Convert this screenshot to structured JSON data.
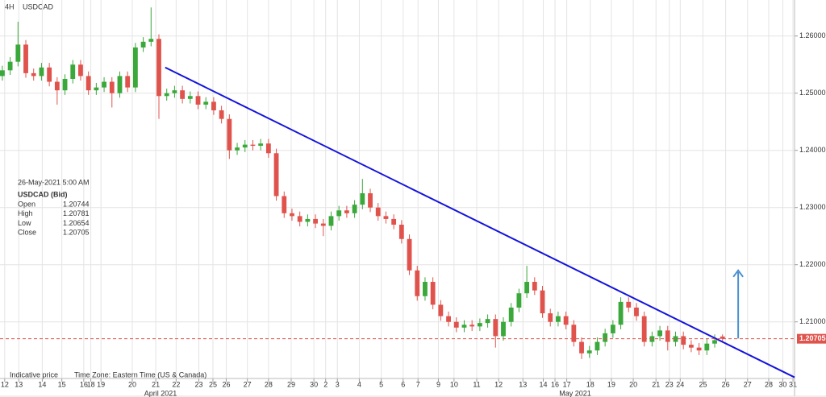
{
  "chart_data": {
    "type": "candlestick",
    "timeframe": "4H",
    "symbol": "USDCAD",
    "info": {
      "date": "26-May-2021 5:00 AM",
      "instrument": "USDCAD (Bid)",
      "labels": [
        "Open",
        "High",
        "Low",
        "Close"
      ]
    },
    "footer": [
      "Indicative price",
      "Time Zone: Eastern Time (US & Canada)"
    ],
    "month_labels": [
      "April 2021",
      "May 2021"
    ],
    "up_color": "#3aa83a",
    "down_color": "#e0534d",
    "grid": true,
    "xlim": [
      -0.3,
      101.2
    ],
    "ylim": [
      1.2001,
      1.2663
    ],
    "yticks": [
      {
        "value": 1.26,
        "label": "1.26000"
      },
      {
        "value": 1.25,
        "label": "1.25000"
      },
      {
        "value": 1.24,
        "label": "1.24000"
      },
      {
        "value": 1.23,
        "label": "1.23000"
      },
      {
        "value": 1.22,
        "label": "1.22000"
      },
      {
        "value": 1.21,
        "label": "1.21000"
      }
    ],
    "xticks": [
      {
        "value": 0.3,
        "label": "12"
      },
      {
        "value": 2.1,
        "label": "13"
      },
      {
        "value": 5.1,
        "label": "14"
      },
      {
        "value": 7.6,
        "label": "15"
      },
      {
        "value": 10.4,
        "label": "16"
      },
      {
        "value": 11.3,
        "label": "18"
      },
      {
        "value": 12.6,
        "label": "19"
      },
      {
        "value": 16.6,
        "label": "20"
      },
      {
        "value": 19.6,
        "label": "21"
      },
      {
        "value": 22.2,
        "label": "22"
      },
      {
        "value": 25.1,
        "label": "23"
      },
      {
        "value": 26.9,
        "label": "25"
      },
      {
        "value": 28.6,
        "label": "26"
      },
      {
        "value": 31.3,
        "label": "27"
      },
      {
        "value": 34.0,
        "label": "28"
      },
      {
        "value": 36.9,
        "label": "29"
      },
      {
        "value": 39.8,
        "label": "30"
      },
      {
        "value": 41.3,
        "label": "2"
      },
      {
        "value": 42.8,
        "label": "3"
      },
      {
        "value": 45.6,
        "label": "4"
      },
      {
        "value": 48.4,
        "label": "5"
      },
      {
        "value": 51.2,
        "label": "6"
      },
      {
        "value": 53.1,
        "label": "7"
      },
      {
        "value": 55.7,
        "label": "9"
      },
      {
        "value": 57.7,
        "label": "10"
      },
      {
        "value": 60.6,
        "label": "11"
      },
      {
        "value": 63.4,
        "label": "12"
      },
      {
        "value": 66.5,
        "label": "13"
      },
      {
        "value": 69.1,
        "label": "14"
      },
      {
        "value": 70.6,
        "label": "16"
      },
      {
        "value": 72.1,
        "label": "17"
      },
      {
        "value": 75.1,
        "label": "18"
      },
      {
        "value": 77.8,
        "label": "19"
      },
      {
        "value": 80.6,
        "label": "20"
      },
      {
        "value": 83.5,
        "label": "21"
      },
      {
        "value": 85.2,
        "label": "23"
      },
      {
        "value": 86.6,
        "label": "24"
      },
      {
        "value": 89.5,
        "label": "25"
      },
      {
        "value": 92.4,
        "label": "26"
      },
      {
        "value": 95.2,
        "label": "27"
      },
      {
        "value": 97.9,
        "label": "28"
      },
      {
        "value": 99.7,
        "label": "30"
      },
      {
        "value": 101.0,
        "label": "31"
      }
    ],
    "open": [
      1.253,
      1.254,
      1.2555,
      1.2585,
      1.2535,
      1.253,
      1.2545,
      1.252,
      1.2505,
      1.2525,
      1.255,
      1.253,
      1.2505,
      1.251,
      1.252,
      1.25,
      1.253,
      1.251,
      1.258,
      1.259,
      1.2595,
      1.2495,
      1.25,
      1.2505,
      1.249,
      1.2495,
      1.248,
      1.2485,
      1.247,
      1.2455,
      1.24,
      1.2405,
      1.241,
      1.2408,
      1.2412,
      1.2395,
      1.232,
      1.229,
      1.2285,
      1.2275,
      1.228,
      1.2272,
      1.2268,
      1.2285,
      1.2295,
      1.229,
      1.2305,
      1.2325,
      1.23,
      1.2285,
      1.228,
      1.227,
      1.2245,
      1.219,
      1.2145,
      1.217,
      1.213,
      1.211,
      1.21,
      1.209,
      1.2095,
      1.2092,
      1.2098,
      1.2105,
      1.2075,
      1.21,
      1.2125,
      1.215,
      1.217,
      1.2155,
      1.2115,
      1.21,
      1.211,
      1.2095,
      1.2065,
      1.2045,
      1.205,
      1.2065,
      1.208,
      1.2095,
      1.2135,
      1.2125,
      1.211,
      1.2065,
      1.2075,
      1.2085,
      1.2065,
      1.2075,
      1.206,
      1.2055,
      1.205,
      1.2062,
      1.20744
    ],
    "high": [
      1.2548,
      1.2563,
      1.2625,
      1.2593,
      1.2543,
      1.2553,
      1.2553,
      1.2528,
      1.2533,
      1.2558,
      1.2558,
      1.2538,
      1.2518,
      1.2528,
      1.2528,
      1.2538,
      1.2538,
      1.2588,
      1.2598,
      1.265,
      1.2603,
      1.2508,
      1.2513,
      1.2513,
      1.2503,
      1.2503,
      1.2493,
      1.2493,
      1.2478,
      1.2463,
      1.2413,
      1.2418,
      1.2418,
      1.242,
      1.242,
      1.2403,
      1.2328,
      1.2298,
      1.2293,
      1.2288,
      1.2288,
      1.228,
      1.2293,
      1.2303,
      1.2303,
      1.2313,
      1.235,
      1.2333,
      1.2308,
      1.2293,
      1.2288,
      1.2278,
      1.2253,
      1.2198,
      1.2178,
      1.2178,
      1.2138,
      1.2118,
      1.2108,
      1.2103,
      1.2103,
      1.2106,
      1.2113,
      1.2113,
      1.2108,
      1.2133,
      1.2158,
      1.2198,
      1.2178,
      1.2163,
      1.2123,
      1.2118,
      1.2118,
      1.2103,
      1.2073,
      1.2058,
      1.2073,
      1.2088,
      1.2103,
      1.2143,
      1.2143,
      1.2133,
      1.2118,
      1.2083,
      1.2093,
      1.2093,
      1.2083,
      1.2083,
      1.2068,
      1.2063,
      1.207,
      1.2078,
      1.20781
    ],
    "low": [
      1.2522,
      1.2532,
      1.2547,
      1.2527,
      1.2522,
      1.2522,
      1.2512,
      1.248,
      1.2497,
      1.2517,
      1.2522,
      1.2497,
      1.2497,
      1.2502,
      1.2475,
      1.2492,
      1.2502,
      1.2502,
      1.2572,
      1.2582,
      1.2455,
      1.2487,
      1.2492,
      1.2482,
      1.2482,
      1.2472,
      1.2472,
      1.2462,
      1.2447,
      1.2385,
      1.2392,
      1.2397,
      1.24,
      1.24,
      1.2387,
      1.2312,
      1.2282,
      1.2277,
      1.2267,
      1.2267,
      1.2264,
      1.225,
      1.226,
      1.2277,
      1.2282,
      1.2282,
      1.2297,
      1.2292,
      1.2277,
      1.2272,
      1.2262,
      1.2237,
      1.2182,
      1.2137,
      1.2137,
      1.2122,
      1.2102,
      1.2092,
      1.2082,
      1.2082,
      1.2084,
      1.2084,
      1.209,
      1.2055,
      1.2067,
      1.2092,
      1.2117,
      1.2142,
      1.2147,
      1.2107,
      1.2092,
      1.2092,
      1.2087,
      1.2057,
      1.2035,
      1.2037,
      1.2042,
      1.2057,
      1.2072,
      1.2087,
      1.2117,
      1.2102,
      1.2057,
      1.2057,
      1.2067,
      1.205,
      1.2057,
      1.2052,
      1.2047,
      1.2042,
      1.2042,
      1.2055,
      1.20654
    ],
    "close": [
      1.254,
      1.2555,
      1.2585,
      1.2535,
      1.253,
      1.2545,
      1.252,
      1.2505,
      1.2525,
      1.255,
      1.253,
      1.2505,
      1.251,
      1.252,
      1.25,
      1.253,
      1.251,
      1.258,
      1.259,
      1.2595,
      1.2495,
      1.25,
      1.2505,
      1.249,
      1.2495,
      1.248,
      1.2485,
      1.247,
      1.2455,
      1.24,
      1.2405,
      1.241,
      1.2408,
      1.2412,
      1.2395,
      1.232,
      1.229,
      1.2285,
      1.2275,
      1.228,
      1.2272,
      1.2268,
      1.2285,
      1.2295,
      1.229,
      1.2305,
      1.2325,
      1.23,
      1.2285,
      1.228,
      1.227,
      1.2245,
      1.219,
      1.2145,
      1.217,
      1.213,
      1.211,
      1.21,
      1.209,
      1.2095,
      1.2092,
      1.2098,
      1.2105,
      1.2075,
      1.21,
      1.2125,
      1.215,
      1.217,
      1.2155,
      1.2115,
      1.21,
      1.211,
      1.2095,
      1.2065,
      1.2045,
      1.205,
      1.2065,
      1.208,
      1.2095,
      1.2135,
      1.2125,
      1.211,
      1.2065,
      1.2075,
      1.2085,
      1.2065,
      1.2075,
      1.206,
      1.2055,
      1.205,
      1.2062,
      1.2068,
      1.20705
    ],
    "trendline": {
      "x": [
        20.8,
        101.2
      ],
      "y": [
        1.2545,
        1.2003
      ],
      "color": "#1414dc"
    },
    "arrow": {
      "x": [
        94.0,
        94.0
      ],
      "y": [
        1.2071,
        1.219
      ],
      "color": "#4a90d0"
    },
    "price_line_color": "#e0534d"
  }
}
